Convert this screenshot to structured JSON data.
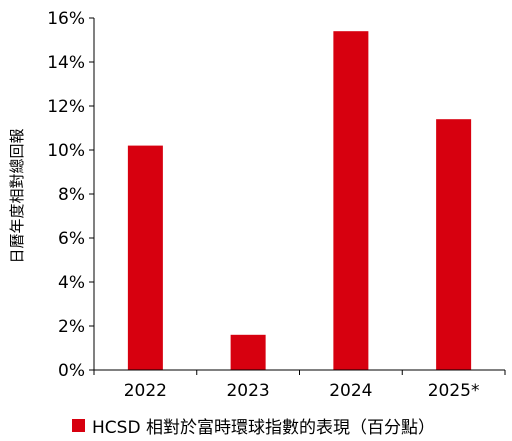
{
  "chart_data": {
    "type": "bar",
    "categories": [
      "2022",
      "2023",
      "2024",
      "2025*"
    ],
    "series": [
      {
        "name": "HCSD 相對於富時環球指數的表現（百分點）",
        "values": [
          10.2,
          1.6,
          15.4,
          11.4
        ]
      }
    ],
    "ylabel": "日曆年度相對總回報",
    "ylim": [
      0,
      16
    ],
    "yticks": [
      0,
      2,
      4,
      6,
      8,
      10,
      12,
      14,
      16
    ],
    "ytick_labels": [
      "0%",
      "2%",
      "4%",
      "6%",
      "8%",
      "10%",
      "12%",
      "14%",
      "16%"
    ],
    "legend_position": "bottom",
    "grid": false,
    "colors": {
      "bar": "#d7000f"
    }
  }
}
